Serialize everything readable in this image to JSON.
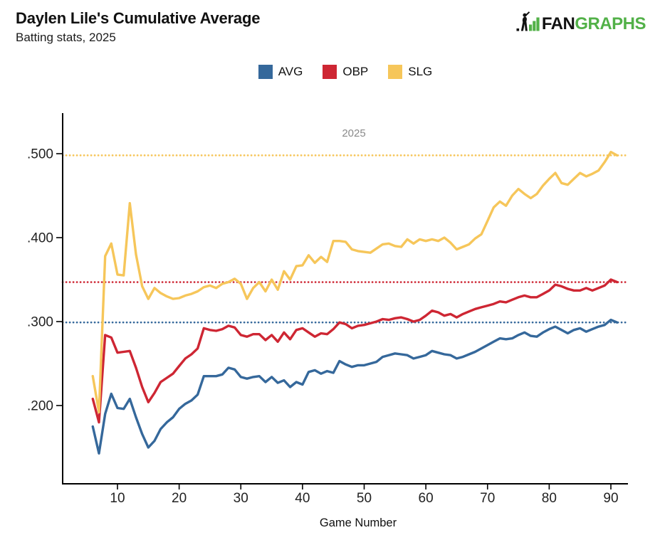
{
  "header": {
    "title": "Daylen Lile's Cumulative Average",
    "subtitle": "Batting stats, 2025"
  },
  "logo": {
    "text_black": "FAN",
    "text_green": "GRAPHS",
    "green": "#52b148"
  },
  "legend": {
    "items": [
      {
        "label": "AVG",
        "color": "#35689b"
      },
      {
        "label": "OBP",
        "color": "#ce2633"
      },
      {
        "label": "SLG",
        "color": "#f6c65a"
      }
    ]
  },
  "chart_data": {
    "type": "line",
    "facet_label": "2025",
    "xlabel": "Game Number",
    "x_ticks": [
      10,
      20,
      30,
      40,
      50,
      60,
      70,
      80,
      90
    ],
    "y_ticks": [
      {
        "label": ".500",
        "value": 0.5
      },
      {
        "label": ".400",
        "value": 0.4
      },
      {
        "label": ".300",
        "value": 0.3
      },
      {
        "label": ".200",
        "value": 0.2
      }
    ],
    "xlim": [
      1,
      92.5
    ],
    "ylim": [
      0.11,
      0.552
    ],
    "grid": "off",
    "legend_position": "top-center",
    "games": [
      6,
      7,
      8,
      9,
      10,
      11,
      12,
      13,
      14,
      15,
      16,
      17,
      18,
      19,
      20,
      21,
      22,
      23,
      24,
      25,
      26,
      27,
      28,
      29,
      30,
      31,
      32,
      33,
      34,
      35,
      36,
      37,
      38,
      39,
      40,
      41,
      42,
      43,
      44,
      45,
      46,
      47,
      48,
      49,
      50,
      51,
      52,
      53,
      54,
      55,
      56,
      57,
      58,
      59,
      60,
      61,
      62,
      63,
      64,
      65,
      66,
      67,
      68,
      69,
      70,
      71,
      72,
      73,
      74,
      75,
      76,
      77,
      78,
      79,
      80,
      81,
      82,
      83,
      84,
      85,
      86,
      87,
      88,
      89,
      90,
      91
    ],
    "series": [
      {
        "name": "AVG",
        "color": "#35689b",
        "final_value": 0.299,
        "values": [
          0.175,
          0.143,
          0.19,
          0.214,
          0.197,
          0.196,
          0.208,
          0.186,
          0.166,
          0.15,
          0.158,
          0.172,
          0.18,
          0.186,
          0.196,
          0.202,
          0.206,
          0.213,
          0.235,
          0.235,
          0.235,
          0.237,
          0.245,
          0.243,
          0.234,
          0.232,
          0.234,
          0.235,
          0.228,
          0.234,
          0.227,
          0.23,
          0.222,
          0.228,
          0.225,
          0.24,
          0.242,
          0.238,
          0.241,
          0.239,
          0.253,
          0.249,
          0.246,
          0.248,
          0.248,
          0.25,
          0.252,
          0.258,
          0.26,
          0.262,
          0.261,
          0.26,
          0.256,
          0.258,
          0.26,
          0.265,
          0.263,
          0.261,
          0.26,
          0.256,
          0.258,
          0.261,
          0.264,
          0.268,
          0.272,
          0.276,
          0.28,
          0.279,
          0.28,
          0.284,
          0.287,
          0.283,
          0.282,
          0.287,
          0.291,
          0.294,
          0.29,
          0.286,
          0.29,
          0.292,
          0.288,
          0.291,
          0.294,
          0.296,
          0.302,
          0.299
        ]
      },
      {
        "name": "OBP",
        "color": "#ce2633",
        "final_value": 0.347,
        "values": [
          0.208,
          0.18,
          0.284,
          0.281,
          0.263,
          0.264,
          0.265,
          0.245,
          0.222,
          0.204,
          0.215,
          0.228,
          0.233,
          0.238,
          0.247,
          0.256,
          0.261,
          0.268,
          0.292,
          0.29,
          0.289,
          0.291,
          0.295,
          0.293,
          0.284,
          0.282,
          0.285,
          0.285,
          0.278,
          0.284,
          0.276,
          0.287,
          0.279,
          0.29,
          0.292,
          0.287,
          0.282,
          0.286,
          0.285,
          0.291,
          0.299,
          0.297,
          0.292,
          0.295,
          0.296,
          0.298,
          0.3,
          0.303,
          0.302,
          0.304,
          0.305,
          0.303,
          0.3,
          0.302,
          0.307,
          0.313,
          0.311,
          0.307,
          0.309,
          0.305,
          0.309,
          0.312,
          0.315,
          0.317,
          0.319,
          0.321,
          0.324,
          0.323,
          0.326,
          0.329,
          0.331,
          0.329,
          0.329,
          0.333,
          0.337,
          0.344,
          0.342,
          0.339,
          0.337,
          0.337,
          0.34,
          0.337,
          0.34,
          0.343,
          0.35,
          0.347
        ]
      },
      {
        "name": "SLG",
        "color": "#f6c65a",
        "final_value": 0.498,
        "values": [
          0.235,
          0.192,
          0.378,
          0.393,
          0.356,
          0.355,
          0.441,
          0.38,
          0.342,
          0.327,
          0.34,
          0.334,
          0.33,
          0.327,
          0.328,
          0.331,
          0.333,
          0.336,
          0.341,
          0.343,
          0.34,
          0.345,
          0.347,
          0.351,
          0.345,
          0.327,
          0.34,
          0.347,
          0.336,
          0.35,
          0.338,
          0.36,
          0.35,
          0.366,
          0.367,
          0.379,
          0.37,
          0.377,
          0.371,
          0.396,
          0.396,
          0.395,
          0.386,
          0.384,
          0.383,
          0.382,
          0.387,
          0.392,
          0.393,
          0.39,
          0.389,
          0.398,
          0.393,
          0.398,
          0.396,
          0.398,
          0.396,
          0.4,
          0.394,
          0.386,
          0.389,
          0.392,
          0.399,
          0.404,
          0.42,
          0.436,
          0.443,
          0.438,
          0.45,
          0.458,
          0.452,
          0.447,
          0.452,
          0.462,
          0.47,
          0.477,
          0.465,
          0.463,
          0.47,
          0.477,
          0.473,
          0.476,
          0.48,
          0.49,
          0.502,
          0.498
        ]
      }
    ],
    "reference_lines": [
      {
        "series": "AVG",
        "value": 0.299,
        "style": "dotted"
      },
      {
        "series": "OBP",
        "value": 0.347,
        "style": "dotted"
      },
      {
        "series": "SLG",
        "value": 0.498,
        "style": "dotted"
      }
    ]
  }
}
